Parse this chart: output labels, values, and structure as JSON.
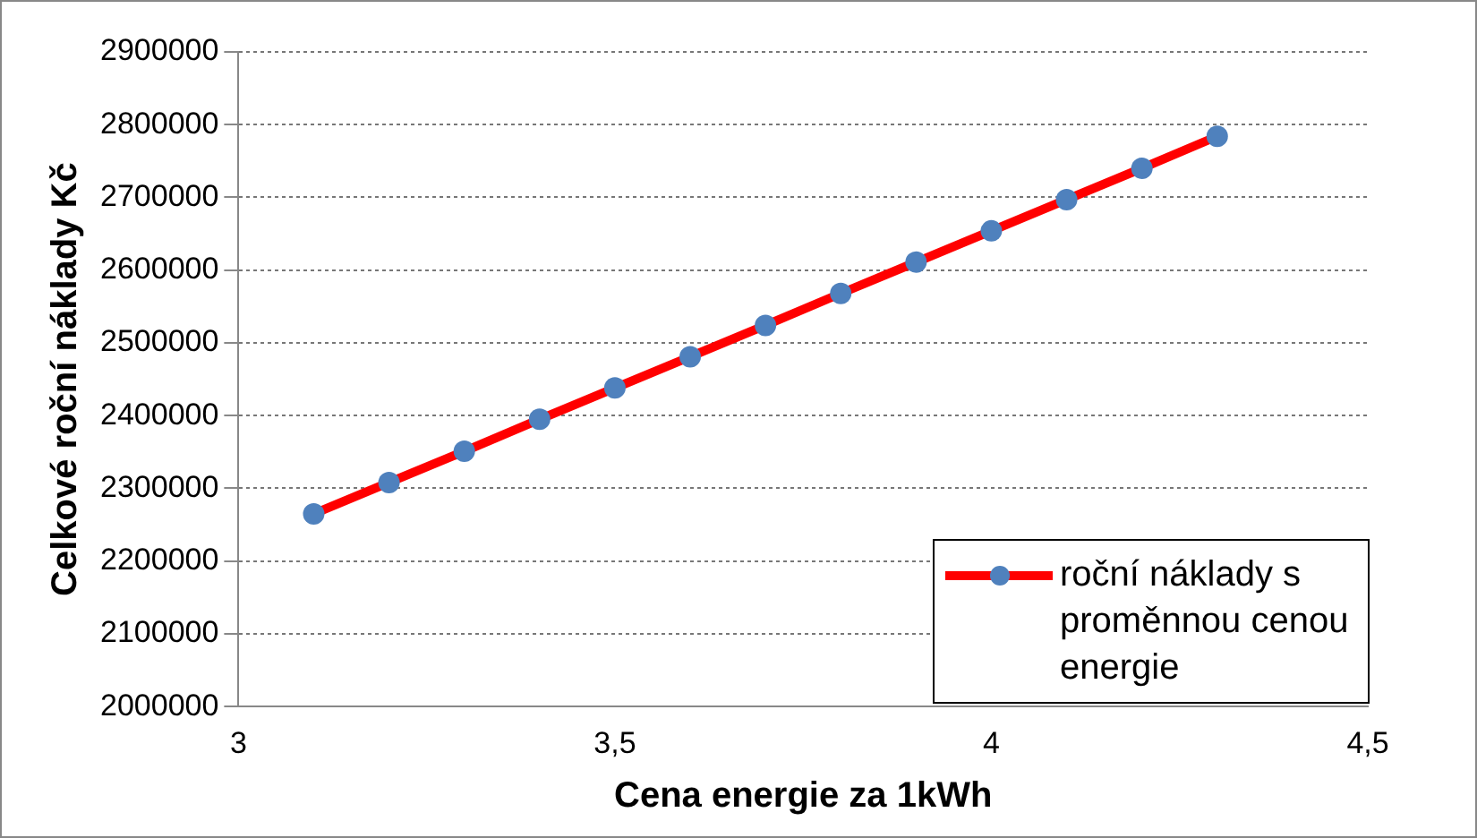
{
  "chart_data": {
    "type": "line",
    "xlabel": "Cena energie za 1kWh",
    "ylabel": "Celkové roční náklady Kč",
    "x": [
      3.1,
      3.2,
      3.3,
      3.4,
      3.5,
      3.6,
      3.7,
      3.8,
      3.9,
      4.0,
      4.1,
      4.2,
      4.3
    ],
    "series": [
      {
        "name": "roční náklady s proměnnou cenou energie",
        "color": "#ff0000",
        "values": [
          2265000,
          2308000,
          2351000,
          2395000,
          2438000,
          2481000,
          2524000,
          2568000,
          2611000,
          2654000,
          2697000,
          2740000,
          2784000
        ]
      }
    ],
    "xlim": [
      3,
      4.5
    ],
    "xticks": [
      3,
      {
        "value": 3.5,
        "label": "3,5"
      },
      4,
      {
        "value": 4.5,
        "label": "4,5"
      }
    ],
    "ylim": [
      2000000,
      2900000
    ],
    "yticks": [
      2000000,
      2100000,
      2200000,
      2300000,
      2400000,
      2500000,
      2600000,
      2700000,
      2800000,
      2900000
    ],
    "grid": "y",
    "legend": "bottom right",
    "marker": "circle",
    "line_style": "solid"
  }
}
